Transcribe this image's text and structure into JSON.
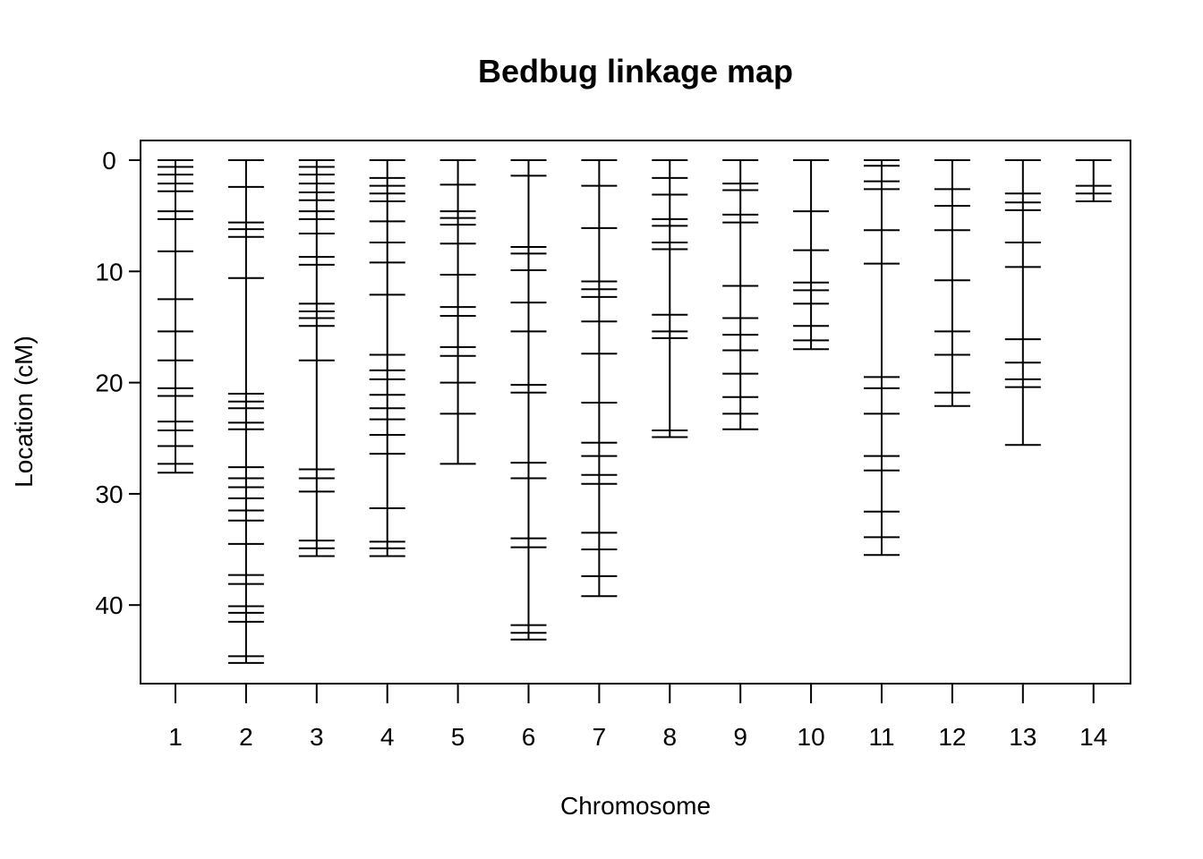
{
  "chart_data": {
    "type": "linkage_map",
    "title": "Bedbug linkage map",
    "xlabel": "Chromosome",
    "ylabel": "Location (cM)",
    "y_reversed": true,
    "ylim": [
      0,
      47.2
    ],
    "yticks": [
      0,
      10,
      20,
      30,
      40
    ],
    "grid": false,
    "legend": "none",
    "categories": [
      "1",
      "2",
      "3",
      "4",
      "5",
      "6",
      "7",
      "8",
      "9",
      "10",
      "11",
      "12",
      "13",
      "14"
    ],
    "chromosomes": [
      {
        "name": "1",
        "markers": [
          0,
          0.6,
          1.3,
          2.1,
          2.8,
          4.6,
          5.3,
          8.2,
          12.5,
          15.4,
          18.0,
          20.5,
          21.2,
          23.5,
          24.3,
          25.7,
          27.3,
          28.1
        ]
      },
      {
        "name": "2",
        "markers": [
          0,
          2.4,
          5.6,
          6.2,
          6.9,
          10.6,
          21.0,
          21.7,
          22.3,
          23.6,
          24.2,
          27.6,
          28.6,
          29.4,
          30.4,
          31.5,
          32.4,
          34.5,
          37.3,
          38.1,
          40.1,
          40.7,
          41.5,
          44.6,
          45.2
        ]
      },
      {
        "name": "3",
        "markers": [
          0,
          0.6,
          1.3,
          2.1,
          2.9,
          3.6,
          4.6,
          5.3,
          6.6,
          8.7,
          9.4,
          12.9,
          13.6,
          14.2,
          14.9,
          18.0,
          27.8,
          28.6,
          29.8,
          34.2,
          34.9,
          35.6
        ]
      },
      {
        "name": "4",
        "markers": [
          0,
          1.6,
          2.3,
          3.0,
          3.7,
          5.5,
          7.4,
          9.2,
          12.1,
          17.5,
          18.9,
          19.7,
          21.1,
          22.3,
          23.3,
          24.7,
          26.4,
          31.3,
          34.3,
          34.9,
          35.6
        ]
      },
      {
        "name": "5",
        "markers": [
          0,
          2.2,
          4.6,
          5.2,
          5.8,
          7.5,
          10.3,
          13.2,
          14.0,
          16.8,
          17.6,
          20.0,
          22.8,
          27.3
        ]
      },
      {
        "name": "6",
        "markers": [
          0,
          1.4,
          7.8,
          8.4,
          9.9,
          12.8,
          15.4,
          20.2,
          20.9,
          27.2,
          28.6,
          34.0,
          34.8,
          41.8,
          42.5,
          43.1
        ]
      },
      {
        "name": "7",
        "markers": [
          0,
          2.3,
          6.1,
          10.9,
          11.6,
          12.3,
          14.5,
          17.4,
          21.8,
          25.4,
          26.6,
          28.3,
          29.1,
          33.5,
          35.0,
          37.4,
          39.2
        ]
      },
      {
        "name": "8",
        "markers": [
          0,
          1.6,
          3.1,
          5.3,
          5.9,
          7.4,
          8.0,
          13.9,
          15.4,
          16.0,
          24.3,
          24.9
        ]
      },
      {
        "name": "9",
        "markers": [
          0,
          2.1,
          2.7,
          4.9,
          5.6,
          11.3,
          14.2,
          15.7,
          17.1,
          19.2,
          21.3,
          22.8,
          24.2
        ]
      },
      {
        "name": "10",
        "markers": [
          0,
          4.6,
          8.1,
          11.0,
          11.7,
          12.9,
          14.9,
          16.2,
          17.0
        ]
      },
      {
        "name": "11",
        "markers": [
          0,
          0.5,
          1.9,
          2.6,
          6.3,
          9.3,
          19.5,
          20.5,
          22.8,
          26.6,
          27.9,
          31.6,
          33.9,
          35.5
        ]
      },
      {
        "name": "12",
        "markers": [
          0,
          2.6,
          4.1,
          6.3,
          10.8,
          15.4,
          17.5,
          20.9,
          22.1
        ]
      },
      {
        "name": "13",
        "markers": [
          0,
          3.0,
          3.8,
          4.5,
          7.4,
          9.6,
          16.1,
          18.2,
          19.7,
          20.4,
          25.6
        ]
      },
      {
        "name": "14",
        "markers": [
          0,
          2.3,
          3.0,
          3.7
        ]
      }
    ]
  }
}
